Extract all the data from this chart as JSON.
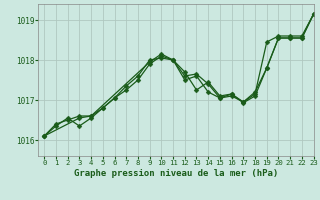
{
  "title": "Graphe pression niveau de la mer (hPa)",
  "background_color": "#cce8e0",
  "grid_color": "#b0c8c0",
  "line_color": "#1a5c1a",
  "xlim": [
    -0.5,
    23
  ],
  "ylim": [
    1015.6,
    1019.4
  ],
  "xticks": [
    0,
    1,
    2,
    3,
    4,
    5,
    6,
    7,
    8,
    9,
    10,
    11,
    12,
    13,
    14,
    15,
    16,
    17,
    18,
    19,
    20,
    21,
    22,
    23
  ],
  "yticks": [
    1016,
    1017,
    1018,
    1019
  ],
  "series1_x": [
    0,
    1,
    2,
    3,
    4,
    5,
    6,
    7,
    8,
    9,
    10,
    11,
    12,
    13,
    14,
    15,
    16,
    17,
    18,
    19,
    20,
    21,
    22,
    23
  ],
  "series1_y": [
    1016.1,
    1016.4,
    1016.5,
    1016.6,
    1016.6,
    1016.8,
    1017.05,
    1017.25,
    1017.5,
    1017.9,
    1018.1,
    1018.0,
    1017.6,
    1017.65,
    1017.4,
    1017.05,
    1017.15,
    1016.95,
    1017.15,
    1018.45,
    1018.6,
    1018.6,
    1018.6,
    1019.15
  ],
  "series2_x": [
    0,
    1,
    2,
    3,
    4,
    5,
    6,
    7,
    8,
    9,
    10,
    11,
    12,
    13,
    14,
    15,
    16,
    17,
    18,
    19,
    20,
    21,
    22,
    23
  ],
  "series2_y": [
    1016.1,
    1016.35,
    1016.55,
    1016.35,
    1016.55,
    1016.8,
    1017.05,
    1017.35,
    1017.6,
    1018.0,
    1018.05,
    1018.0,
    1017.5,
    1017.6,
    1017.2,
    1017.05,
    1017.1,
    1016.95,
    1017.2,
    1017.8,
    1018.55,
    1018.55,
    1018.55,
    1019.15
  ],
  "series3_x": [
    0,
    3,
    4,
    9,
    10,
    11,
    12,
    13,
    14,
    15,
    16,
    17,
    18,
    19,
    20,
    21,
    22,
    23
  ],
  "series3_y": [
    1016.1,
    1016.55,
    1016.6,
    1017.95,
    1018.15,
    1018.0,
    1017.7,
    1017.25,
    1017.45,
    1017.1,
    1017.15,
    1016.93,
    1017.1,
    1017.8,
    1018.55,
    1018.55,
    1018.55,
    1019.15
  ],
  "marker": "D",
  "marker_size": 2.5,
  "linewidth": 0.9,
  "tick_labelsize": 5.5,
  "xlabel_fontsize": 6.5
}
